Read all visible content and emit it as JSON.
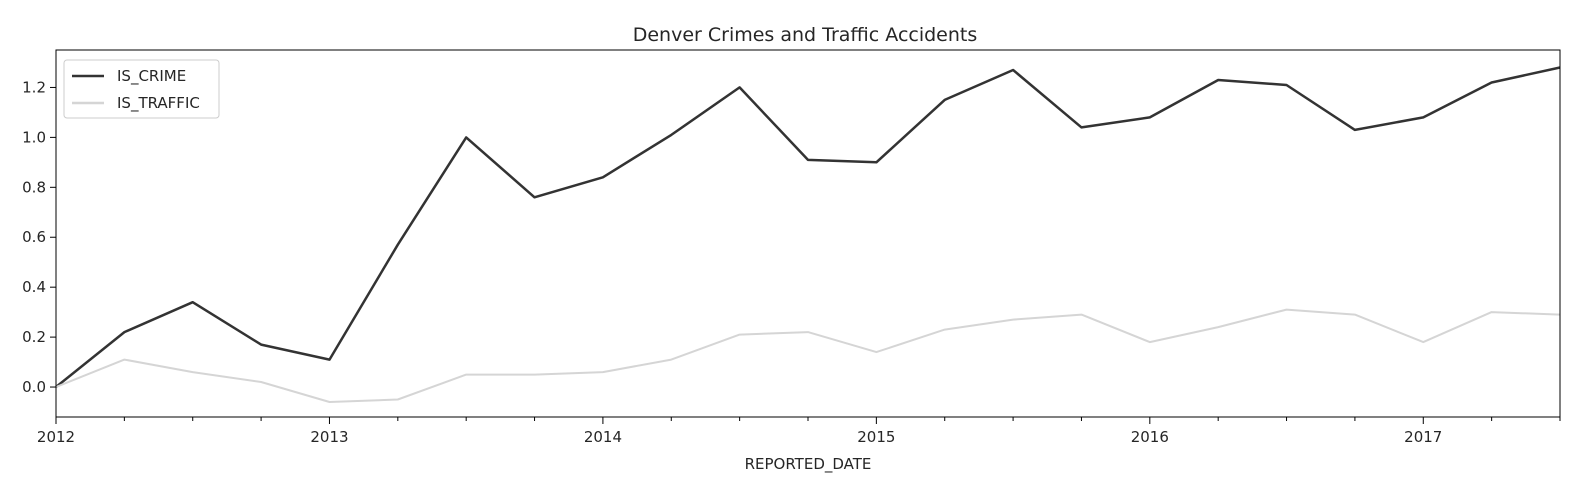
{
  "chart_data": {
    "type": "line",
    "title": "Denver Crimes and Traffic Accidents",
    "xlabel": "REPORTED_DATE",
    "ylabel": "",
    "x": [
      "2012-01",
      "2012-04",
      "2012-07",
      "2012-10",
      "2013-01",
      "2013-04",
      "2013-07",
      "2013-10",
      "2014-01",
      "2014-04",
      "2014-07",
      "2014-10",
      "2015-01",
      "2015-04",
      "2015-07",
      "2015-10",
      "2016-01",
      "2016-04",
      "2016-07",
      "2016-10",
      "2017-01",
      "2017-04",
      "2017-07"
    ],
    "x_tick_labels": [
      "2012",
      "2013",
      "2014",
      "2015",
      "2016",
      "2017"
    ],
    "ylim": [
      -0.12,
      1.35
    ],
    "y_ticks": [
      "0.0",
      "0.2",
      "0.4",
      "0.6",
      "0.8",
      "1.0",
      "1.2"
    ],
    "grid": false,
    "legend_position": "top-left",
    "series": [
      {
        "name": "IS_CRIME",
        "color": "#333333",
        "values": [
          0.0,
          0.22,
          0.34,
          0.17,
          0.11,
          0.57,
          1.0,
          0.76,
          0.84,
          1.01,
          1.2,
          0.91,
          0.9,
          1.15,
          1.27,
          1.04,
          1.08,
          1.23,
          1.21,
          1.03,
          1.08,
          1.22,
          1.28
        ]
      },
      {
        "name": "IS_TRAFFIC",
        "color": "#d5d5d5",
        "values": [
          0.0,
          0.11,
          0.06,
          0.02,
          -0.06,
          -0.05,
          0.05,
          0.05,
          0.06,
          0.11,
          0.21,
          0.22,
          0.14,
          0.23,
          0.27,
          0.29,
          0.18,
          0.24,
          0.31,
          0.29,
          0.18,
          0.3,
          0.29
        ]
      }
    ]
  }
}
